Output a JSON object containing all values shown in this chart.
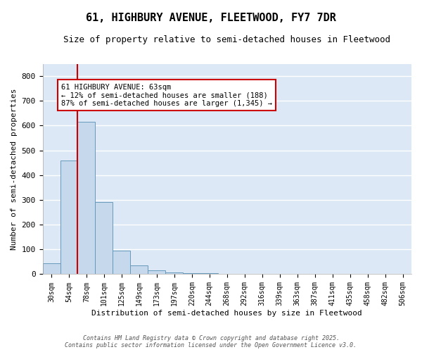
{
  "title": "61, HIGHBURY AVENUE, FLEETWOOD, FY7 7DR",
  "subtitle": "Size of property relative to semi-detached houses in Fleetwood",
  "xlabel": "Distribution of semi-detached houses by size in Fleetwood",
  "ylabel": "Number of semi-detached properties",
  "categories": [
    "30sqm",
    "54sqm",
    "78sqm",
    "101sqm",
    "125sqm",
    "149sqm",
    "173sqm",
    "197sqm",
    "220sqm",
    "244sqm",
    "268sqm",
    "292sqm",
    "316sqm",
    "339sqm",
    "363sqm",
    "387sqm",
    "411sqm",
    "435sqm",
    "458sqm",
    "482sqm",
    "506sqm"
  ],
  "values": [
    45,
    460,
    615,
    290,
    95,
    35,
    15,
    8,
    5,
    5,
    0,
    0,
    0,
    0,
    0,
    0,
    0,
    0,
    0,
    0,
    0
  ],
  "bar_color": "#c5d8ec",
  "bar_edge_color": "#6699bb",
  "red_line_x": 1.5,
  "annotation_title": "61 HIGHBURY AVENUE: 63sqm",
  "annotation_line2": "← 12% of semi-detached houses are smaller (188)",
  "annotation_line3": "87% of semi-detached houses are larger (1,345) →",
  "annotation_box_facecolor": "#ffffff",
  "annotation_box_edgecolor": "#cc0000",
  "red_line_color": "#cc0000",
  "ylim": [
    0,
    850
  ],
  "yticks": [
    0,
    100,
    200,
    300,
    400,
    500,
    600,
    700,
    800
  ],
  "fig_bg": "#ffffff",
  "plot_bg": "#dce8f5",
  "grid_color": "#ffffff",
  "footer_line1": "Contains HM Land Registry data © Crown copyright and database right 2025.",
  "footer_line2": "Contains public sector information licensed under the Open Government Licence v3.0."
}
